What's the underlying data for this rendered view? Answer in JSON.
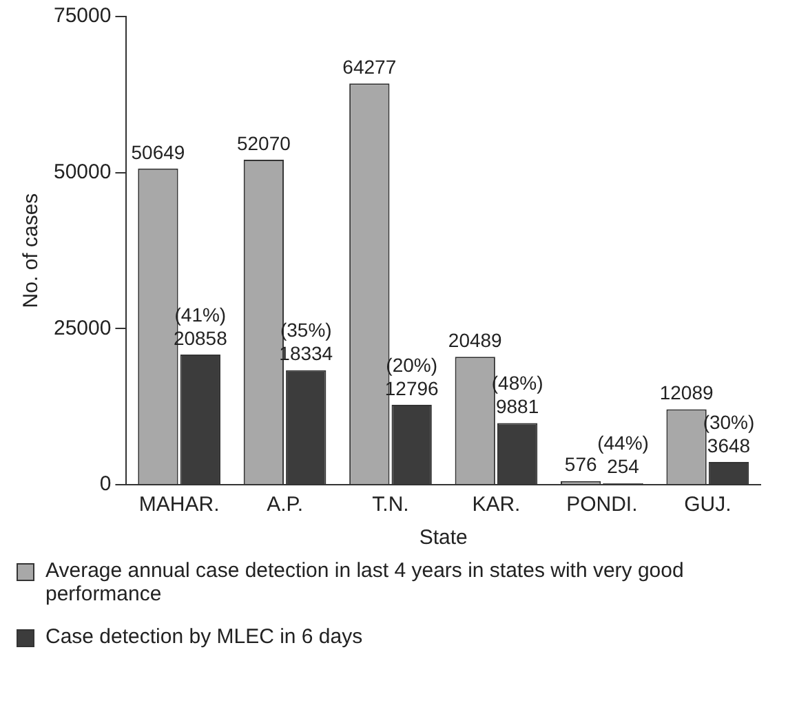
{
  "chart_data": {
    "type": "bar",
    "xlabel": "State",
    "ylabel": "No. of cases",
    "categories": [
      "MAHAR.",
      "A.P.",
      "T.N.",
      "KAR.",
      "PONDI.",
      "GUJ."
    ],
    "series": [
      {
        "name": "Average annual case detection in last 4 years in states with very good performance",
        "color": "#a8a8a8",
        "values": [
          50649,
          52070,
          64277,
          20489,
          576,
          12089
        ],
        "value_labels": [
          "50649",
          "52070",
          "64277",
          "20489",
          "576",
          "12089"
        ]
      },
      {
        "name": "Case detection by MLEC in 6 days",
        "color": "#3c3c3c",
        "values": [
          20858,
          18334,
          12796,
          9881,
          254,
          3648
        ],
        "value_labels": [
          "(41%)\n20858",
          "(35%)\n18334",
          "(20%)\n12796",
          "(48%)\n9881",
          "(44%)\n254",
          "(30%)\n3648"
        ]
      }
    ],
    "ylim": [
      0,
      75000
    ],
    "yticks": [
      0,
      25000,
      50000,
      75000
    ],
    "grid": false,
    "legend": "bottom"
  }
}
